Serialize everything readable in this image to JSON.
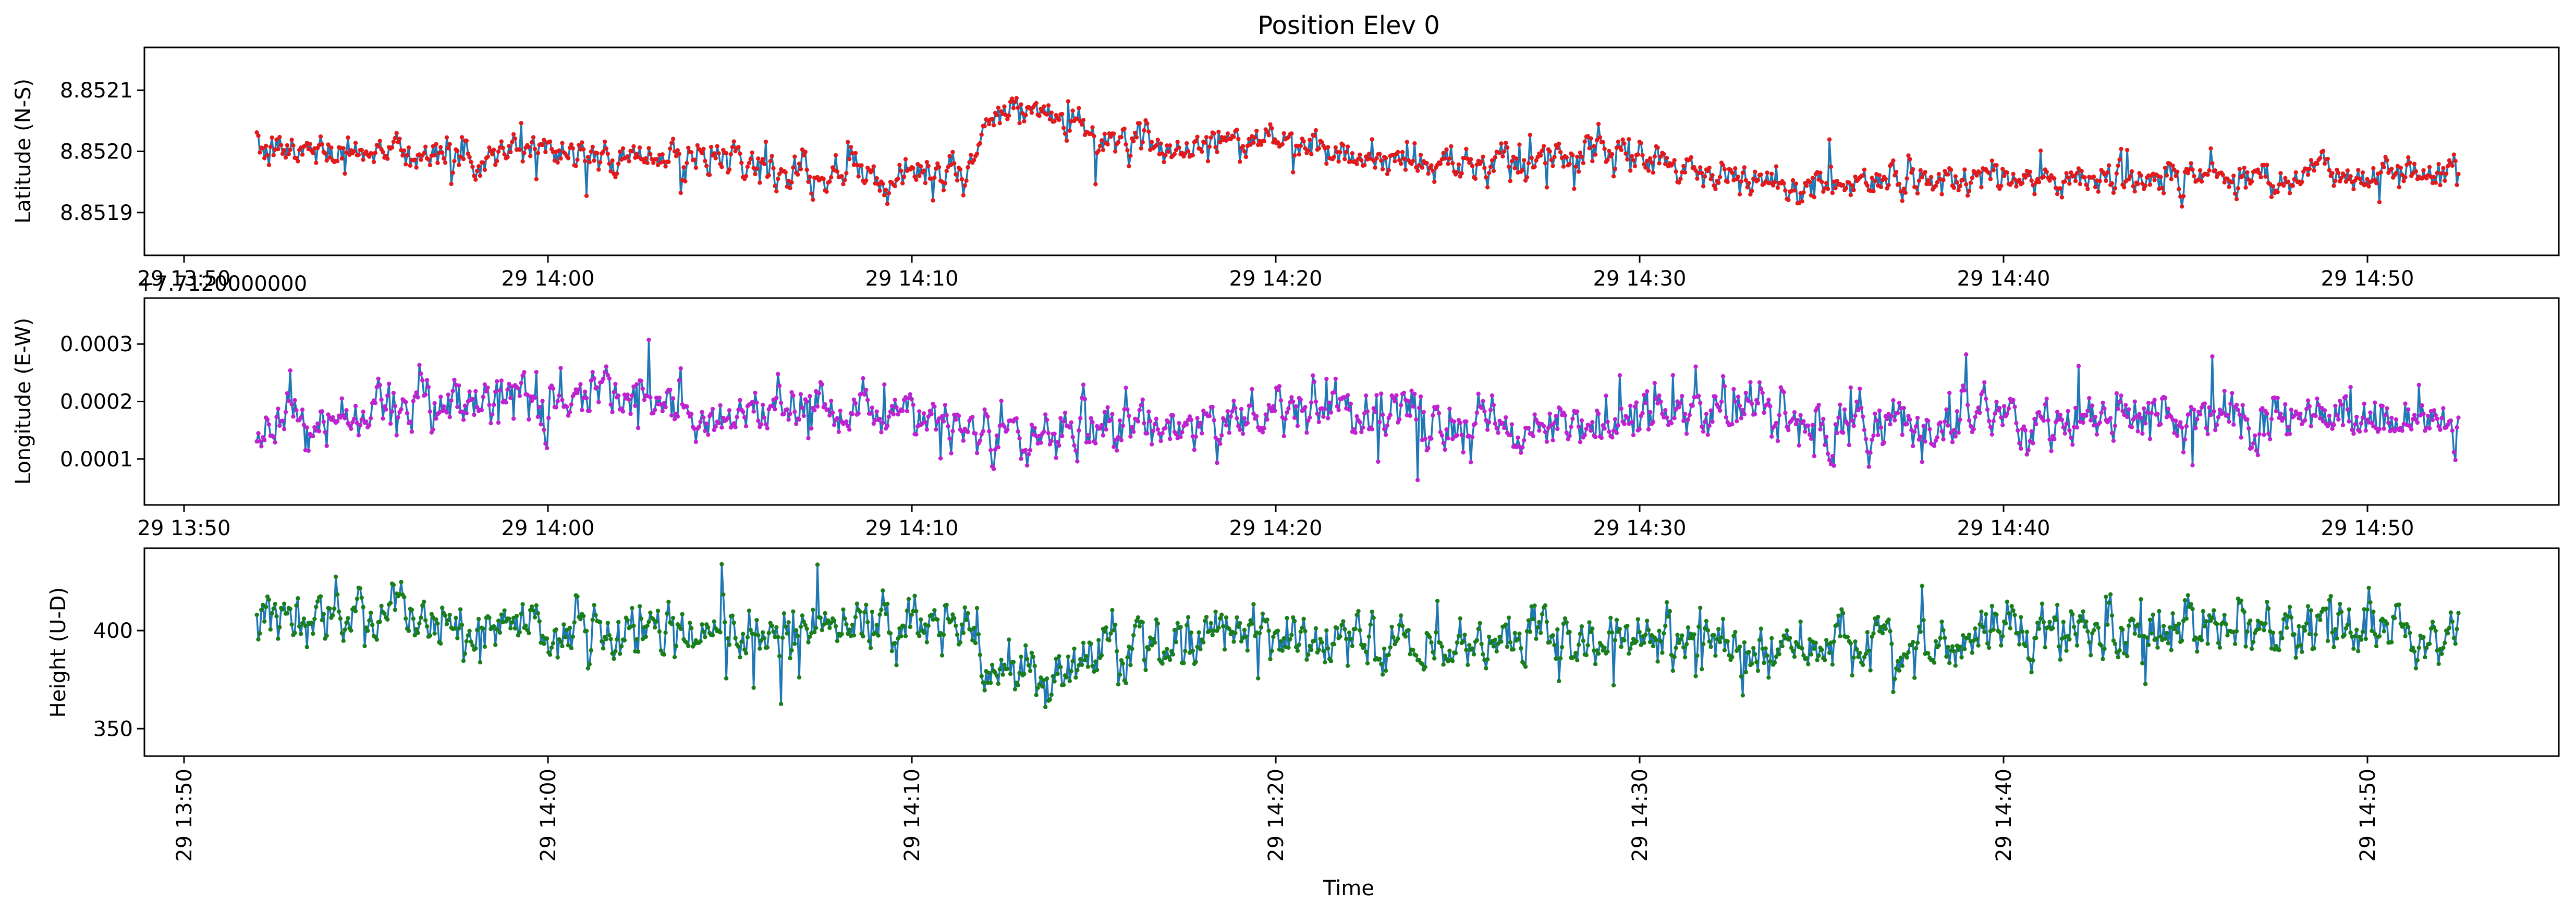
{
  "chart_data": [
    {
      "type": "line",
      "title": "Position Elev 0",
      "xlabel": "",
      "ylabel": "Latitude (N-S)",
      "offset_text": "",
      "x_tick_labels": [
        "29 13:50",
        "29 14:00",
        "29 14:10",
        "29 14:20",
        "29 14:30",
        "29 14:40",
        "29 14:50"
      ],
      "y_ticks": [
        8.8519,
        8.852,
        8.8521
      ],
      "y_tick_labels": [
        "8.8519",
        "8.8520",
        "8.8521"
      ],
      "ylim": [
        8.85183,
        8.85217
      ],
      "line_color": "#1f77b4",
      "marker_color": "#e31a1c",
      "series": {
        "t_start": "13:52:00",
        "t_end": "14:52:30",
        "baseline": [
          [
            0,
            8.851996
          ],
          [
            2,
            8.852005
          ],
          [
            4,
            8.852004
          ],
          [
            6,
            8.851985
          ],
          [
            8,
            8.852007
          ],
          [
            10,
            8.85199
          ],
          [
            12,
            8.851988
          ],
          [
            14,
            8.851975
          ],
          [
            16,
            8.851962
          ],
          [
            18,
            8.85197
          ],
          [
            19.5,
            8.851955
          ],
          [
            20,
            8.85204
          ],
          [
            21,
            8.85207
          ],
          [
            22,
            8.85205
          ],
          [
            24,
            8.852015
          ],
          [
            26,
            8.852008
          ],
          [
            28,
            8.852025
          ],
          [
            30,
            8.85199
          ],
          [
            32,
            8.85198
          ],
          [
            34,
            8.851978
          ],
          [
            36,
            8.85199
          ],
          [
            38,
            8.85199
          ],
          [
            40,
            8.85196
          ],
          [
            42,
            8.851945
          ],
          [
            44,
            8.851945
          ],
          [
            46,
            8.851955
          ],
          [
            48,
            8.85196
          ],
          [
            50,
            8.85195
          ],
          [
            52,
            8.851962
          ],
          [
            54,
            8.85196
          ],
          [
            56,
            8.851965
          ],
          [
            58,
            8.851965
          ],
          [
            60.5,
            8.851972
          ]
        ],
        "noise": 1.8e-05,
        "spike": 4.5e-05
      }
    },
    {
      "type": "line",
      "title": "",
      "xlabel": "",
      "ylabel": "Longitude (E-W)",
      "offset_text": "+7.7120000000",
      "x_tick_labels": [
        "29 13:50",
        "29 14:00",
        "29 14:10",
        "29 14:20",
        "29 14:30",
        "29 14:40",
        "29 14:50"
      ],
      "y_ticks": [
        0.0001,
        0.0002,
        0.0003
      ],
      "y_tick_labels": [
        "0.0001",
        "0.0002",
        "0.0003"
      ],
      "ylim": [
        2e-05,
        0.00038
      ],
      "line_color": "#1f77b4",
      "marker_color": "#c022d0",
      "series": {
        "t_start": "13:52:00",
        "t_end": "14:52:30",
        "baseline": [
          [
            0,
            0.00016
          ],
          [
            3,
            0.000175
          ],
          [
            5,
            0.000205
          ],
          [
            7,
            0.0002
          ],
          [
            9,
            0.00021
          ],
          [
            10,
            0.000212
          ],
          [
            12,
            0.00017
          ],
          [
            14,
            0.00018
          ],
          [
            16,
            0.000175
          ],
          [
            18,
            0.00017
          ],
          [
            20,
            0.00014
          ],
          [
            21,
            0.00015
          ],
          [
            24,
            0.00016
          ],
          [
            26,
            0.00016
          ],
          [
            28,
            0.00017
          ],
          [
            29,
            0.0002
          ],
          [
            30,
            0.000175
          ],
          [
            32,
            0.000165
          ],
          [
            35,
            0.00016
          ],
          [
            38,
            0.000175
          ],
          [
            40,
            0.000185
          ],
          [
            41,
            0.000205
          ],
          [
            42,
            0.00017
          ],
          [
            44,
            0.00016
          ],
          [
            47,
            0.000165
          ],
          [
            50,
            0.00016
          ],
          [
            53,
            0.000165
          ],
          [
            56,
            0.00017
          ],
          [
            58,
            0.00017
          ],
          [
            60.5,
            0.00017
          ]
        ],
        "noise": 2.8e-05,
        "spike": 7e-05
      }
    },
    {
      "type": "line",
      "title": "",
      "xlabel": "Time",
      "ylabel": "Height (U-D)",
      "offset_text": "",
      "x_tick_labels": [
        "29 13:50",
        "29 14:00",
        "29 14:10",
        "29 14:20",
        "29 14:30",
        "29 14:40",
        "29 14:50"
      ],
      "y_ticks": [
        350,
        400
      ],
      "y_tick_labels": [
        "350",
        "400"
      ],
      "ylim": [
        336,
        442
      ],
      "line_color": "#1f77b4",
      "marker_color": "#1a7f1a",
      "series": {
        "t_start": "13:52:00",
        "t_end": "14:52:30",
        "baseline": [
          [
            0,
            402
          ],
          [
            2,
            405
          ],
          [
            4,
            408
          ],
          [
            6,
            402
          ],
          [
            8,
            400
          ],
          [
            10,
            398
          ],
          [
            12,
            402
          ],
          [
            14,
            398
          ],
          [
            16,
            404
          ],
          [
            18,
            402
          ],
          [
            19.8,
            403
          ],
          [
            20,
            372
          ],
          [
            21,
            375
          ],
          [
            23,
            388
          ],
          [
            25,
            396
          ],
          [
            27,
            398
          ],
          [
            30,
            395
          ],
          [
            33,
            392
          ],
          [
            35,
            397
          ],
          [
            38,
            395
          ],
          [
            40,
            392
          ],
          [
            42,
            390
          ],
          [
            44,
            390
          ],
          [
            46,
            393
          ],
          [
            48,
            398
          ],
          [
            50,
            402
          ],
          [
            52,
            399
          ],
          [
            55,
            400
          ],
          [
            58,
            401
          ],
          [
            60.5,
            402
          ]
        ],
        "noise": 9,
        "spike": 22
      }
    }
  ],
  "x_axis": {
    "tick_times_min": [
      -2,
      8,
      18,
      28,
      38,
      48,
      58
    ]
  }
}
